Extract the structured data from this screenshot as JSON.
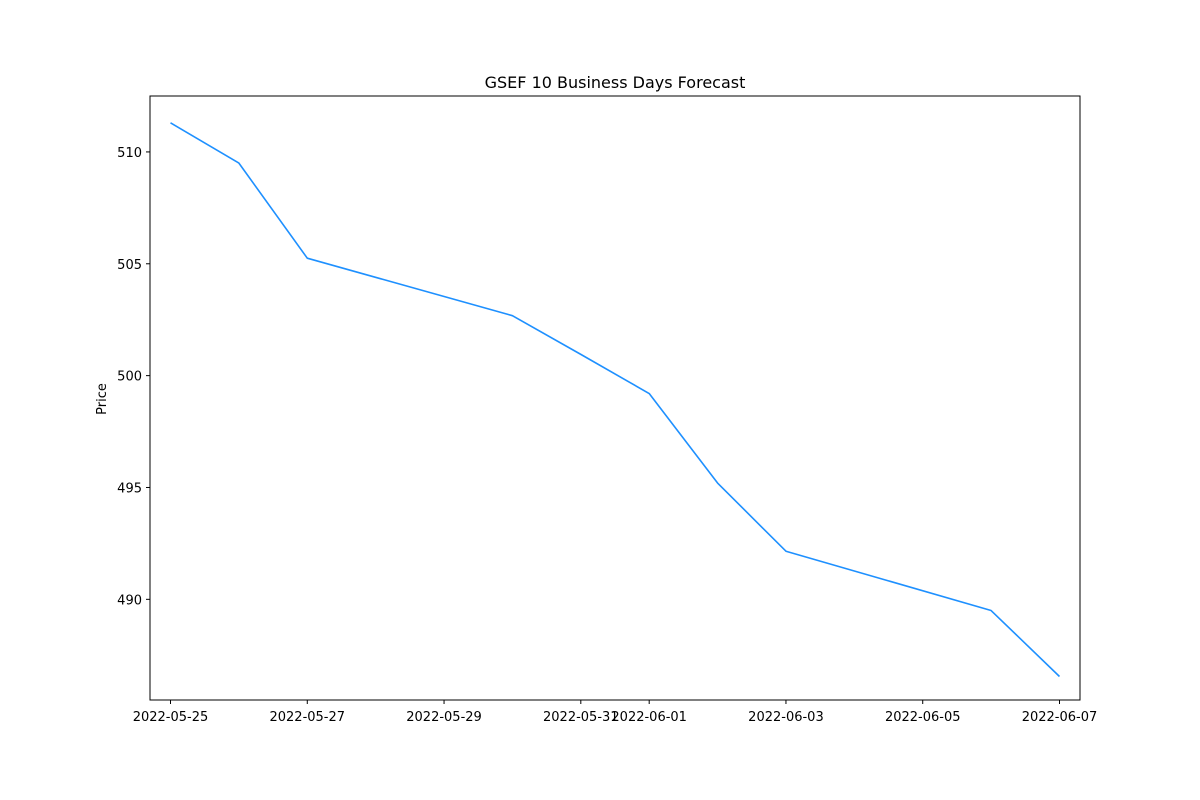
{
  "chart_data": {
    "type": "line",
    "title": "GSEF 10 Business Days Forecast",
    "xlabel": "",
    "ylabel": "Price",
    "x": [
      "2022-05-25",
      "2022-05-26",
      "2022-05-27",
      "2022-05-30",
      "2022-05-31",
      "2022-06-01",
      "2022-06-02",
      "2022-06-03",
      "2022-06-06",
      "2022-06-07"
    ],
    "series": [
      {
        "values": [
          511.3,
          509.5,
          505.25,
          502.68,
          500.95,
          499.2,
          495.2,
          492.15,
          489.5,
          486.55
        ],
        "color": "#1e90ff"
      }
    ],
    "xticks": [
      "2022-05-25",
      "2022-05-27",
      "2022-05-29",
      "2022-05-31",
      "2022-06-01",
      "2022-06-03",
      "2022-06-05",
      "2022-06-07"
    ],
    "yticks": [
      490,
      495,
      500,
      505,
      510
    ],
    "xlim": [
      "2022-05-24T16:48",
      "2022-06-07T07:12"
    ],
    "ylim": [
      485.5,
      512.5
    ],
    "grid": false
  }
}
